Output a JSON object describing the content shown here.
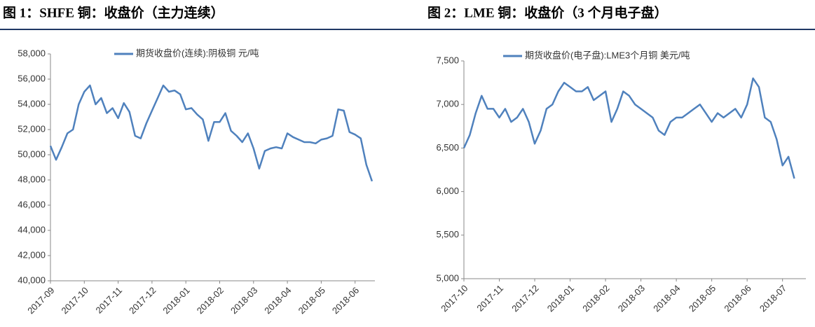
{
  "chart_data": [
    {
      "type": "line",
      "title": "图 1：SHFE 铜：收盘价（主力连续）",
      "categories": [
        "2017-09",
        null,
        null,
        null,
        null,
        null,
        "2017-10",
        null,
        null,
        null,
        null,
        null,
        "2017-11",
        null,
        null,
        null,
        null,
        null,
        "2017-12",
        null,
        null,
        null,
        null,
        null,
        "2018-01",
        null,
        null,
        null,
        null,
        null,
        "2018-02",
        null,
        null,
        null,
        null,
        null,
        "2018-03",
        null,
        null,
        null,
        null,
        null,
        "2018-04",
        null,
        null,
        null,
        null,
        null,
        "2018-05",
        null,
        null,
        null,
        null,
        null,
        "2018-06",
        null,
        null,
        null
      ],
      "series": [
        {
          "name": "期货收盘价(连续):阴极铜 元/吨",
          "color": "#4f81bd",
          "values": [
            50700,
            49600,
            50600,
            51700,
            52000,
            54000,
            55000,
            55500,
            54000,
            54500,
            53300,
            53700,
            52900,
            54100,
            53400,
            51500,
            51300,
            52500,
            53500,
            54500,
            55500,
            55000,
            55100,
            54800,
            53600,
            53700,
            53200,
            52800,
            51100,
            52600,
            52600,
            53300,
            51900,
            51500,
            51000,
            51700,
            50500,
            48900,
            50300,
            50500,
            50600,
            50500,
            51700,
            51400,
            51200,
            51000,
            51000,
            50900,
            51200,
            51300,
            51500,
            53600,
            53500,
            51800,
            51600,
            51300,
            49200,
            47900
          ]
        }
      ],
      "ylim": [
        40000,
        58000
      ],
      "yticks": [
        {
          "value": 40000,
          "label": "40,000"
        },
        {
          "value": 42000,
          "label": "42,000"
        },
        {
          "value": 44000,
          "label": "44,000"
        },
        {
          "value": 46000,
          "label": "46,000"
        },
        {
          "value": 48000,
          "label": "48,000"
        },
        {
          "value": 50000,
          "label": "50,000"
        },
        {
          "value": 52000,
          "label": "52,000"
        },
        {
          "value": 54000,
          "label": "54,000"
        },
        {
          "value": 56000,
          "label": "56,000"
        },
        {
          "value": 58000,
          "label": "58,000"
        }
      ],
      "grid": false
    },
    {
      "type": "line",
      "title": "图 2：LME 铜：收盘价（3 个月电子盘）",
      "categories": [
        "2017-10",
        null,
        null,
        null,
        null,
        null,
        "2017-11",
        null,
        null,
        null,
        null,
        null,
        "2017-12",
        null,
        null,
        null,
        null,
        null,
        "2018-01",
        null,
        null,
        null,
        null,
        null,
        "2018-02",
        null,
        null,
        null,
        null,
        null,
        "2018-03",
        null,
        null,
        null,
        null,
        null,
        "2018-04",
        null,
        null,
        null,
        null,
        null,
        "2018-05",
        null,
        null,
        null,
        null,
        null,
        "2018-06",
        null,
        null,
        null,
        null,
        null,
        "2018-07",
        null,
        null
      ],
      "series": [
        {
          "name": "期货收盘价(电子盘):LME3个月铜 美元/吨",
          "color": "#4f81bd",
          "values": [
            6500,
            6650,
            6900,
            7100,
            6950,
            6950,
            6850,
            6950,
            6800,
            6850,
            6950,
            6800,
            6550,
            6700,
            6950,
            7000,
            7150,
            7250,
            7200,
            7150,
            7150,
            7200,
            7050,
            7100,
            7150,
            6800,
            6950,
            7150,
            7100,
            7000,
            6950,
            6900,
            6850,
            6700,
            6650,
            6800,
            6850,
            6850,
            6900,
            6950,
            7000,
            6900,
            6800,
            6900,
            6850,
            6900,
            6950,
            6850,
            7000,
            7300,
            7200,
            6850,
            6800,
            6600,
            6300,
            6400,
            6150
          ]
        }
      ],
      "ylim": [
        5000,
        7500
      ],
      "yticks": [
        {
          "value": 5000,
          "label": "5,000"
        },
        {
          "value": 5500,
          "label": "5,500"
        },
        {
          "value": 6000,
          "label": "6,000"
        },
        {
          "value": 6500,
          "label": "6,500"
        },
        {
          "value": 7000,
          "label": "7,000"
        },
        {
          "value": 7500,
          "label": "7,500"
        }
      ],
      "grid": false
    }
  ]
}
